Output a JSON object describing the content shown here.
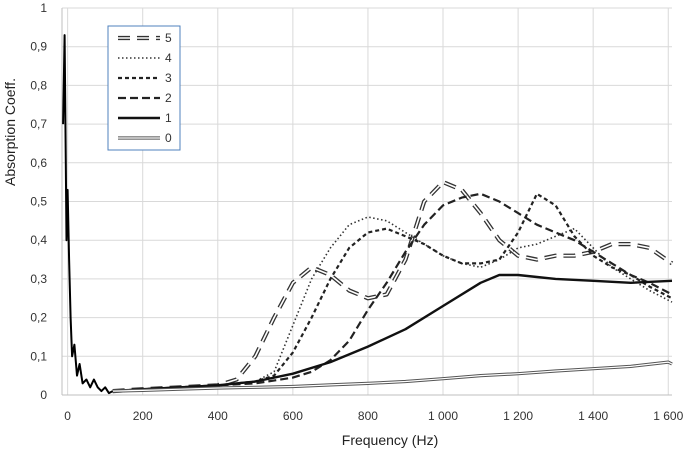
{
  "chart_data": {
    "type": "line",
    "xlabel": "Frequency (Hz)",
    "ylabel": "Absorption Coeff.",
    "xlim": [
      -15,
      1610
    ],
    "ylim": [
      0,
      1
    ],
    "x_ticks": [
      0,
      200,
      400,
      600,
      800,
      1000,
      1200,
      1400,
      1600
    ],
    "x_tick_labels": [
      "0",
      "200",
      "400",
      "600",
      "800",
      "1 000",
      "1 200",
      "1 400",
      "1 600"
    ],
    "y_ticks": [
      0,
      0.1,
      0.2,
      0.3,
      0.4,
      0.5,
      0.6,
      0.7,
      0.8,
      0.9,
      1
    ],
    "y_tick_labels": [
      "0",
      "0,1",
      "0,2",
      "0,3",
      "0,4",
      "0,5",
      "0,6",
      "0,7",
      "0,8",
      "0,9",
      "1"
    ],
    "grid": true,
    "legend_position": "top-left",
    "series": [
      {
        "name": "5",
        "style": "long-dash-hollow",
        "color": "#333333",
        "x": [
          120,
          200,
          300,
          400,
          450,
          500,
          550,
          600,
          650,
          700,
          750,
          800,
          850,
          900,
          950,
          1000,
          1050,
          1100,
          1150,
          1200,
          1250,
          1300,
          1350,
          1400,
          1450,
          1500,
          1550,
          1610
        ],
        "y": [
          0.01,
          0.015,
          0.02,
          0.025,
          0.04,
          0.1,
          0.2,
          0.29,
          0.33,
          0.31,
          0.27,
          0.25,
          0.26,
          0.35,
          0.5,
          0.55,
          0.53,
          0.47,
          0.4,
          0.36,
          0.35,
          0.36,
          0.36,
          0.37,
          0.39,
          0.39,
          0.38,
          0.34
        ]
      },
      {
        "name": "4",
        "style": "dotted",
        "color": "#333333",
        "x": [
          120,
          200,
          300,
          400,
          500,
          550,
          600,
          650,
          700,
          750,
          800,
          850,
          900,
          950,
          1000,
          1050,
          1100,
          1150,
          1200,
          1250,
          1300,
          1350,
          1400,
          1450,
          1500,
          1550,
          1610
        ],
        "y": [
          0.01,
          0.015,
          0.02,
          0.025,
          0.035,
          0.06,
          0.18,
          0.3,
          0.38,
          0.44,
          0.46,
          0.45,
          0.42,
          0.39,
          0.36,
          0.34,
          0.33,
          0.35,
          0.38,
          0.39,
          0.41,
          0.43,
          0.38,
          0.33,
          0.3,
          0.27,
          0.24
        ]
      },
      {
        "name": "3",
        "style": "short-dash",
        "color": "#222222",
        "x": [
          120,
          200,
          300,
          400,
          500,
          550,
          600,
          650,
          700,
          750,
          800,
          850,
          900,
          950,
          1000,
          1050,
          1100,
          1150,
          1200,
          1250,
          1300,
          1350,
          1400,
          1450,
          1500,
          1550,
          1610
        ],
        "y": [
          0.01,
          0.015,
          0.02,
          0.025,
          0.035,
          0.05,
          0.11,
          0.2,
          0.3,
          0.38,
          0.42,
          0.43,
          0.41,
          0.39,
          0.36,
          0.34,
          0.34,
          0.35,
          0.42,
          0.52,
          0.49,
          0.41,
          0.36,
          0.33,
          0.31,
          0.28,
          0.25
        ]
      },
      {
        "name": "2",
        "style": "dash",
        "color": "#222222",
        "x": [
          120,
          200,
          300,
          400,
          500,
          600,
          650,
          700,
          750,
          800,
          850,
          900,
          950,
          1000,
          1050,
          1100,
          1150,
          1200,
          1250,
          1300,
          1350,
          1400,
          1450,
          1500,
          1550,
          1610
        ],
        "y": [
          0.01,
          0.015,
          0.02,
          0.025,
          0.03,
          0.045,
          0.06,
          0.09,
          0.14,
          0.22,
          0.29,
          0.37,
          0.44,
          0.49,
          0.51,
          0.52,
          0.5,
          0.47,
          0.44,
          0.42,
          0.4,
          0.37,
          0.34,
          0.31,
          0.29,
          0.26
        ]
      },
      {
        "name": "1",
        "style": "solid-thick",
        "color": "#111111",
        "x": [
          120,
          200,
          300,
          400,
          500,
          600,
          700,
          800,
          900,
          1000,
          1100,
          1150,
          1200,
          1250,
          1300,
          1400,
          1500,
          1610
        ],
        "y": [
          0.01,
          0.015,
          0.02,
          0.025,
          0.035,
          0.055,
          0.085,
          0.125,
          0.17,
          0.23,
          0.29,
          0.31,
          0.31,
          0.305,
          0.3,
          0.295,
          0.29,
          0.295
        ]
      },
      {
        "name": "0",
        "style": "solid-hollow",
        "color": "#555555",
        "x": [
          120,
          200,
          300,
          400,
          500,
          600,
          700,
          800,
          900,
          1000,
          1100,
          1200,
          1300,
          1400,
          1500,
          1600,
          1610
        ],
        "y": [
          0.01,
          0.012,
          0.015,
          0.018,
          0.02,
          0.022,
          0.026,
          0.03,
          0.035,
          0.042,
          0.05,
          0.055,
          0.062,
          0.068,
          0.074,
          0.085,
          0.08
        ]
      },
      {
        "name": "",
        "style": "solid-noisy",
        "color": "#000000",
        "legend": false,
        "x": [
          -12,
          -8,
          -5,
          -3,
          0,
          4,
          8,
          12,
          18,
          25,
          32,
          40,
          50,
          60,
          70,
          80,
          90,
          100,
          110,
          120
        ],
        "y": [
          0.7,
          0.93,
          0.6,
          0.4,
          0.53,
          0.35,
          0.2,
          0.1,
          0.13,
          0.05,
          0.08,
          0.03,
          0.04,
          0.02,
          0.04,
          0.02,
          0.01,
          0.02,
          0.005,
          0.01
        ]
      }
    ]
  }
}
